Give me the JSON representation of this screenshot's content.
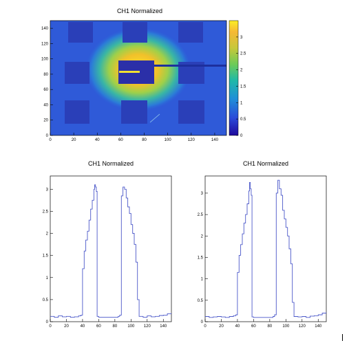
{
  "chart_data": [
    {
      "type": "heatmap",
      "title": "CH1 Normalized",
      "xlim": [
        0,
        150
      ],
      "ylim": [
        0,
        150
      ],
      "zlim": [
        0,
        3.5
      ],
      "x_ticks": [
        "0",
        "20",
        "40",
        "60",
        "80",
        "100",
        "120",
        "140"
      ],
      "y_ticks": [
        "0",
        "20",
        "40",
        "60",
        "80",
        "100",
        "120",
        "140"
      ],
      "z_ticks": [
        "0",
        "0.5",
        "1",
        "1.5",
        "2",
        "2.5",
        "3"
      ],
      "colormap": "viridis-like (blue to yellow)",
      "features": {
        "hot_region_center": [
          72,
          95
        ],
        "dark_pads": [
          [
            64,
            20,
            32,
            20
          ],
          [
            130,
            20,
            32,
            20
          ],
          [
            28,
            20,
            60,
            20
          ],
          [
            92,
            20,
            60,
            20
          ],
          [
            75,
            20,
            63,
            18
          ],
          [
            130,
            20,
            60,
            20
          ],
          [
            28,
            20,
            128,
            16
          ],
          [
            72,
            20,
            130,
            20
          ],
          [
            130,
            20,
            128,
            16
          ],
          [
            28,
            20,
            48,
            16
          ],
          [
            72,
            20,
            48,
            16
          ],
          [
            130,
            20,
            48,
            16
          ]
        ]
      }
    },
    {
      "type": "line",
      "title": "CH1 Normalized",
      "xlim": [
        0,
        150
      ],
      "ylim": [
        0,
        3.3
      ],
      "x_ticks": [
        "0",
        "20",
        "40",
        "60",
        "80",
        "100",
        "120",
        "140"
      ],
      "y_ticks": [
        "0",
        "0.5",
        "1",
        "1.5",
        "2",
        "2.5",
        "3"
      ],
      "x": [
        0,
        5,
        10,
        15,
        20,
        25,
        30,
        35,
        38,
        40,
        42,
        44,
        46,
        48,
        50,
        52,
        54,
        55,
        56,
        57,
        58,
        60,
        65,
        70,
        75,
        80,
        84,
        86,
        88,
        90,
        92,
        94,
        96,
        98,
        100,
        102,
        104,
        106,
        108,
        110,
        115,
        120,
        125,
        130,
        135,
        140,
        145,
        150
      ],
      "y": [
        0.12,
        0.1,
        0.13,
        0.11,
        0.12,
        0.1,
        0.11,
        0.13,
        0.15,
        1.2,
        1.6,
        1.85,
        2.05,
        2.3,
        2.55,
        2.75,
        3.0,
        3.1,
        3.05,
        2.95,
        0.12,
        0.1,
        0.1,
        0.1,
        0.1,
        0.1,
        0.12,
        0.15,
        2.85,
        3.05,
        3.0,
        2.8,
        2.6,
        2.45,
        2.2,
        2.0,
        1.75,
        1.35,
        0.5,
        0.12,
        0.1,
        0.13,
        0.11,
        0.12,
        0.14,
        0.15,
        0.18,
        0.2
      ]
    },
    {
      "type": "line",
      "title": "CH1 Normalized",
      "xlim": [
        0,
        150
      ],
      "ylim": [
        0,
        3.4
      ],
      "x_ticks": [
        "0",
        "20",
        "40",
        "60",
        "80",
        "100",
        "120",
        "140"
      ],
      "y_ticks": [
        "0",
        "0.5",
        "1",
        "1.5",
        "2",
        "2.5",
        "3"
      ],
      "x": [
        0,
        5,
        10,
        15,
        20,
        25,
        30,
        35,
        38,
        40,
        42,
        44,
        46,
        48,
        50,
        52,
        54,
        55,
        56,
        57,
        58,
        60,
        65,
        70,
        75,
        80,
        84,
        86,
        88,
        90,
        92,
        94,
        96,
        98,
        100,
        102,
        104,
        106,
        108,
        110,
        115,
        120,
        125,
        130,
        135,
        140,
        145,
        150
      ],
      "y": [
        0.12,
        0.1,
        0.11,
        0.12,
        0.11,
        0.1,
        0.12,
        0.14,
        0.16,
        1.15,
        1.55,
        1.8,
        2.05,
        2.3,
        2.5,
        2.75,
        3.05,
        3.25,
        3.1,
        2.95,
        0.11,
        0.1,
        0.1,
        0.1,
        0.1,
        0.1,
        0.12,
        0.16,
        3.0,
        3.3,
        3.1,
        2.95,
        2.6,
        2.4,
        2.2,
        2.0,
        1.7,
        1.35,
        0.45,
        0.12,
        0.11,
        0.12,
        0.1,
        0.13,
        0.14,
        0.16,
        0.2,
        0.22
      ]
    }
  ]
}
